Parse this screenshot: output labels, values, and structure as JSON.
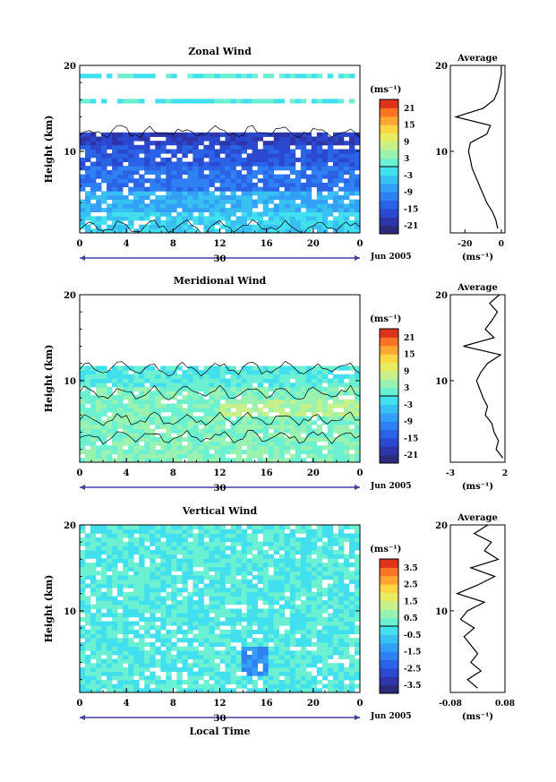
{
  "colors": {
    "ramp": [
      "#2b2a7a",
      "#2d35a8",
      "#2b49cf",
      "#2a63e6",
      "#2f80f2",
      "#33a0f6",
      "#39c0f3",
      "#42e0ee",
      "#6cf0d2",
      "#9af2b0",
      "#c6f08a",
      "#e8ec60",
      "#ffd540",
      "#ffa630",
      "#ff7424",
      "#e0321b"
    ],
    "contour": "#000000",
    "axis": "#000000"
  },
  "date_label": "Jun 2005",
  "day_label": "30",
  "xlabel": "Local Time",
  "ylabel": "Height (km)",
  "cb_unit": "(ms⁻¹)",
  "avg_unit": "(ms⁻¹)",
  "avg_title": "Average",
  "chart_data": [
    {
      "type": "heatmap",
      "title": "Zonal Wind",
      "xlabel": "",
      "ylabel": "Height (km)",
      "xlim": [
        0,
        24
      ],
      "ylim": [
        0.5,
        20
      ],
      "xticks": [
        "0",
        "4",
        "8",
        "12",
        "16",
        "20",
        "0"
      ],
      "yticks": [
        "10",
        "20"
      ],
      "colorbar": {
        "unit": "(ms⁻¹)",
        "ticks": [
          "21",
          "15",
          "9",
          "3",
          "-3",
          "-9",
          "-15",
          "-21"
        ],
        "range": [
          -24,
          24
        ]
      },
      "profile": {
        "title": "Average",
        "xticks": [
          "-20",
          "0"
        ],
        "xlim": [
          -28,
          2
        ],
        "xlabel": "(ms⁻¹)",
        "heights": [
          1,
          2,
          3,
          4,
          5,
          6,
          7,
          8,
          9,
          10,
          11,
          12,
          13,
          14,
          15,
          16,
          17,
          18,
          19,
          20
        ],
        "values": [
          -2,
          -3,
          -5,
          -8,
          -10,
          -12,
          -14,
          -16,
          -17,
          -18,
          -17,
          -8,
          -6,
          -25,
          -10,
          -4,
          -2,
          -1,
          0,
          0
        ]
      }
    },
    {
      "type": "heatmap",
      "title": "Meridional Wind",
      "xlabel": "",
      "ylabel": "Height (km)",
      "xlim": [
        0,
        24
      ],
      "ylim": [
        0.5,
        20
      ],
      "xticks": [
        "0",
        "4",
        "8",
        "12",
        "16",
        "20",
        "0"
      ],
      "yticks": [
        "10",
        "20"
      ],
      "colorbar": {
        "unit": "(ms⁻¹)",
        "ticks": [
          "21",
          "15",
          "9",
          "3",
          "-3",
          "-9",
          "-15",
          "-21"
        ],
        "range": [
          -24,
          24
        ]
      },
      "profile": {
        "title": "Average",
        "xticks": [
          "-3",
          "2"
        ],
        "xlim": [
          -3,
          2
        ],
        "xlabel": "(ms⁻¹)",
        "heights": [
          1,
          2,
          3,
          4,
          5,
          6,
          7,
          8,
          9,
          10,
          11,
          12,
          13,
          14,
          15,
          16,
          17,
          18,
          19,
          20
        ],
        "values": [
          1.8,
          1.2,
          1.4,
          1.0,
          0.8,
          0.2,
          0.4,
          0.0,
          -0.3,
          -0.6,
          -0.2,
          0.4,
          1.6,
          -1.8,
          1.0,
          0.2,
          0.8,
          1.3,
          0.6,
          1.5
        ]
      }
    },
    {
      "type": "heatmap",
      "title": "Vertical Wind",
      "xlabel": "Local Time",
      "ylabel": "Height (km)",
      "xlim": [
        0,
        24
      ],
      "ylim": [
        0.5,
        20
      ],
      "xticks": [
        "0",
        "4",
        "8",
        "12",
        "16",
        "20",
        "0"
      ],
      "yticks": [
        "10",
        "20"
      ],
      "colorbar": {
        "unit": "(ms⁻¹)",
        "ticks": [
          "3.5",
          "2.5",
          "1.5",
          "0.5",
          "-0.5",
          "-1.5",
          "-2.5",
          "-3.5"
        ],
        "range": [
          -4,
          4
        ]
      },
      "profile": {
        "title": "Average",
        "xticks": [
          "-0.08",
          "0.08"
        ],
        "xlim": [
          -0.08,
          0.08
        ],
        "xlabel": "(ms⁻¹)",
        "heights": [
          1,
          2,
          3,
          4,
          5,
          6,
          7,
          8,
          9,
          10,
          11,
          12,
          13,
          14,
          15,
          16,
          17,
          18,
          19,
          20
        ],
        "values": [
          0.0,
          -0.03,
          0.01,
          -0.02,
          0.0,
          -0.02,
          -0.04,
          -0.01,
          -0.05,
          -0.03,
          0.02,
          -0.06,
          0.0,
          0.05,
          -0.02,
          0.06,
          0.02,
          0.04,
          -0.01,
          0.03
        ]
      }
    }
  ]
}
